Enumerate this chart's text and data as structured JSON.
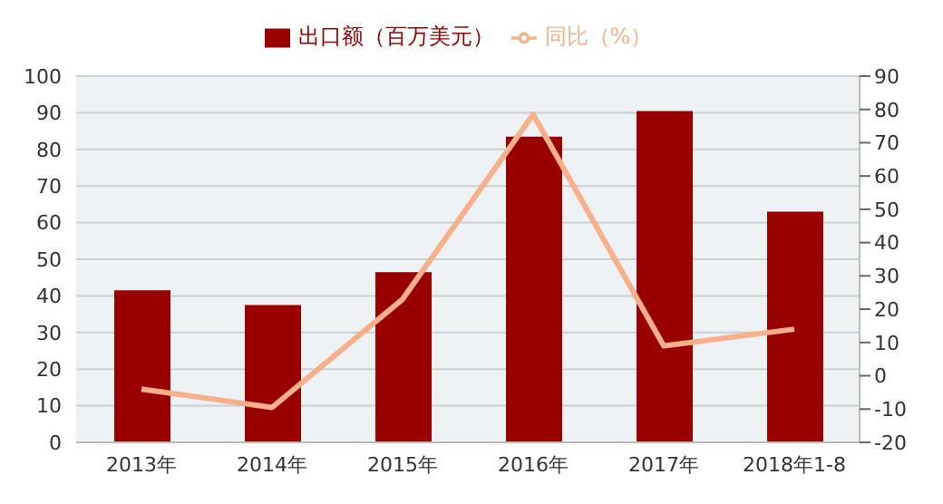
{
  "chart_data": {
    "type": "bar",
    "categories": [
      "2013年",
      "2014年",
      "2015年",
      "2016年",
      "2017年",
      "2018年1-8"
    ],
    "series": [
      {
        "name": "出口额（百万美元）",
        "color": "#990000",
        "values": [
          41.5,
          37.5,
          46.5,
          83.5,
          90.5,
          63
        ]
      },
      {
        "name": "同比（%）",
        "type": "line",
        "axis": "y2",
        "color": "#f8b08a",
        "values": [
          -4,
          -9.5,
          23,
          78.5,
          9,
          14
        ]
      }
    ],
    "ylim": [
      0,
      100
    ],
    "yticks": [
      0,
      10,
      20,
      30,
      40,
      50,
      60,
      70,
      80,
      90,
      100
    ],
    "y2lim": [
      -20,
      90
    ],
    "y2ticks": [
      -20,
      -10,
      0,
      10,
      20,
      30,
      40,
      50,
      60,
      70,
      80,
      90
    ],
    "grid": "y",
    "legend": "top",
    "marker": "none"
  }
}
